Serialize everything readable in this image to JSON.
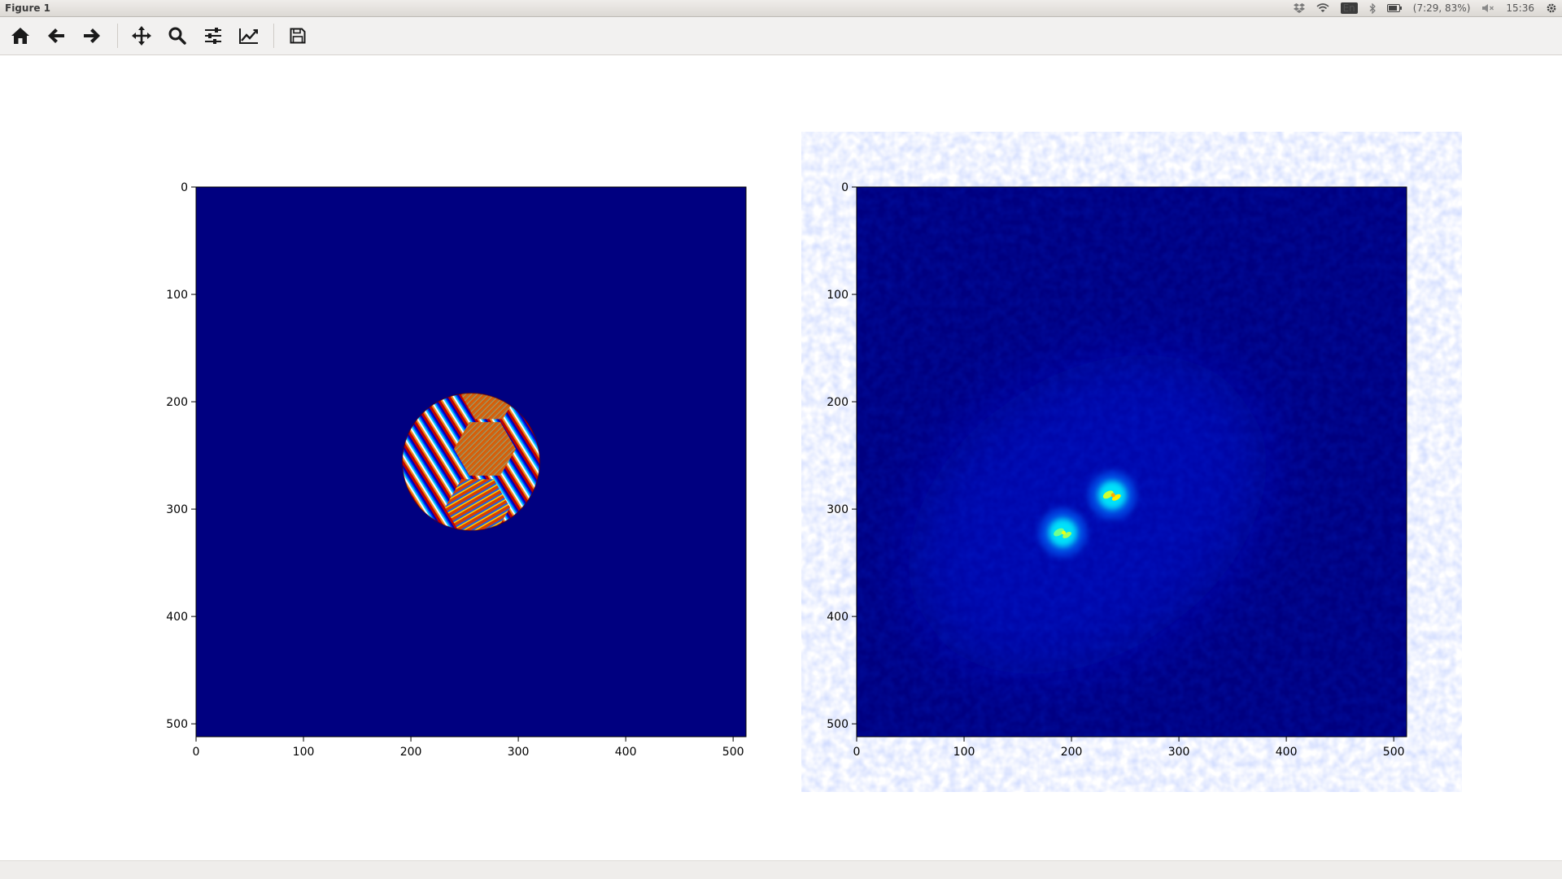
{
  "window": {
    "title": "Figure 1"
  },
  "tray": {
    "lang": "En",
    "battery": "(7:29, 83%)",
    "clock": "15:36",
    "icons": [
      "dropbox-icon",
      "wifi-icon",
      "keyboard-lang-icon",
      "bluetooth-icon",
      "battery-icon",
      "volume-muted-icon",
      "settings-gear-icon"
    ]
  },
  "toolbar": {
    "buttons": [
      {
        "name": "home",
        "icon": "home-icon"
      },
      {
        "name": "back",
        "icon": "arrow-left-icon"
      },
      {
        "name": "forward",
        "icon": "arrow-right-icon"
      },
      {
        "name": "pan",
        "icon": "move-icon"
      },
      {
        "name": "zoom",
        "icon": "magnifier-icon"
      },
      {
        "name": "configure-subplots",
        "icon": "sliders-icon"
      },
      {
        "name": "edit-axes",
        "icon": "line-chart-icon"
      },
      {
        "name": "save",
        "icon": "floppy-disk-icon"
      }
    ]
  },
  "status": {
    "text": ""
  },
  "chart_data": [
    {
      "type": "heatmap",
      "title": "",
      "colormap": "jet",
      "xlim": [
        0,
        512
      ],
      "ylim": [
        512,
        0
      ],
      "xticks": [
        0,
        100,
        200,
        300,
        400,
        500
      ],
      "yticks": [
        0,
        100,
        200,
        300,
        400,
        500
      ],
      "xtick_labels": [
        "0",
        "100",
        "200",
        "300",
        "400",
        "500"
      ],
      "ytick_labels": [
        "0",
        "100",
        "200",
        "300",
        "400",
        "500"
      ],
      "content": "circular aperture with striped phase pattern",
      "disk_center": [
        256,
        256
      ],
      "disk_radius": 64,
      "background_value": 0
    },
    {
      "type": "heatmap",
      "title": "",
      "colormap": "jet",
      "xlim": [
        0,
        512
      ],
      "ylim": [
        512,
        0
      ],
      "xticks": [
        0,
        100,
        200,
        300,
        400,
        500
      ],
      "yticks": [
        0,
        100,
        200,
        300,
        400,
        500
      ],
      "xtick_labels": [
        "0",
        "100",
        "200",
        "300",
        "400",
        "500"
      ],
      "ytick_labels": [
        "0",
        "100",
        "200",
        "300",
        "400",
        "500"
      ],
      "content": "diffraction intensity with two bright spots",
      "peaks": [
        {
          "x": 238,
          "y": 287,
          "intensity": 1.0
        },
        {
          "x": 192,
          "y": 322,
          "intensity": 0.85
        }
      ],
      "background_value": 0.02
    }
  ]
}
